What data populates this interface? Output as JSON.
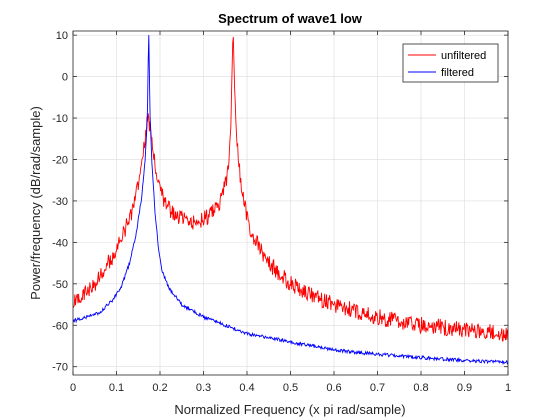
{
  "chart_data": {
    "type": "line",
    "title": "Spectrum of wave1 low",
    "xlabel": "Normalized Frequency (x pi rad/sample)",
    "ylabel": "Power/frequency (dB/rad/sample)",
    "xlim": [
      0,
      1
    ],
    "ylim": [
      -72,
      11
    ],
    "xticks": [
      0,
      0.1,
      0.2,
      0.3,
      0.4,
      0.5,
      0.6,
      0.7,
      0.8,
      0.9,
      1
    ],
    "xtick_labels": [
      "0",
      "0.1",
      "0.2",
      "0.3",
      "0.4",
      "0.5",
      "0.6",
      "0.7",
      "0.8",
      "0.9",
      "1"
    ],
    "yticks": [
      10,
      0,
      -10,
      -20,
      -30,
      -40,
      -50,
      -60,
      -70
    ],
    "ytick_labels": [
      "10",
      "0",
      "-10",
      "-20",
      "-30",
      "-40",
      "-50",
      "-60",
      "-70"
    ],
    "grid": true,
    "legend_position": "top-right",
    "series": [
      {
        "name": "unfiltered",
        "color": "#ff0000",
        "x": [
          0,
          0.02,
          0.05,
          0.08,
          0.1,
          0.12,
          0.14,
          0.155,
          0.165,
          0.172,
          0.178,
          0.185,
          0.195,
          0.21,
          0.23,
          0.26,
          0.29,
          0.32,
          0.34,
          0.355,
          0.362,
          0.368,
          0.372,
          0.378,
          0.388,
          0.41,
          0.45,
          0.5,
          0.55,
          0.6,
          0.7,
          0.8,
          0.9,
          1
        ],
        "y": [
          -55,
          -53,
          -50,
          -45,
          -42,
          -37,
          -31,
          -24,
          -16,
          -10,
          -12,
          -19,
          -25,
          -30,
          -33,
          -35,
          -35,
          -33,
          -30,
          -24,
          -15,
          12,
          -5,
          -17,
          -28,
          -38,
          -45,
          -50,
          -53,
          -55,
          -58,
          -60,
          -61,
          -62
        ],
        "noise_db": 2
      },
      {
        "name": "filtered",
        "color": "#0000ff",
        "x": [
          0,
          0.03,
          0.06,
          0.09,
          0.11,
          0.13,
          0.145,
          0.158,
          0.166,
          0.171,
          0.174,
          0.177,
          0.181,
          0.188,
          0.196,
          0.205,
          0.22,
          0.25,
          0.3,
          0.35,
          0.4,
          0.5,
          0.6,
          0.7,
          0.8,
          0.9,
          1
        ],
        "y": [
          -59,
          -58,
          -57,
          -54,
          -51,
          -45,
          -38,
          -29,
          -20,
          -10,
          12,
          -9,
          -20,
          -32,
          -41,
          -47,
          -51,
          -55,
          -58,
          -60,
          -62,
          -64,
          -66,
          -67,
          -67.8,
          -68.5,
          -69
        ],
        "noise_db": 0.4
      }
    ]
  }
}
